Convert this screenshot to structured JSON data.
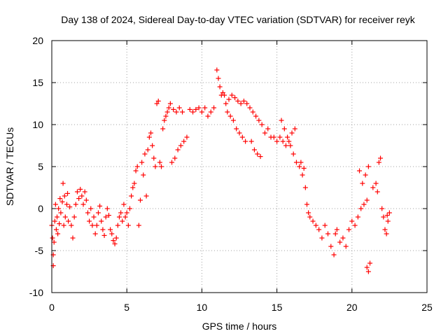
{
  "chart_data": {
    "type": "scatter",
    "title": "Day 138 of 2024, Sidereal Day-to-day VTEC variation (SDTVAR) for receiver reyk",
    "xlabel": "GPS time / hours",
    "ylabel": "SDTVAR / TECUs",
    "xlim": [
      0,
      25
    ],
    "ylim": [
      -10,
      20
    ],
    "xticks": [
      0,
      5,
      10,
      15,
      20,
      25
    ],
    "yticks": [
      -10,
      -5,
      0,
      5,
      10,
      15,
      20
    ],
    "grid": true,
    "marker": "+",
    "color": "#ff0000",
    "series": [
      {
        "name": "SDTVAR",
        "points": [
          [
            0.0,
            -2.0
          ],
          [
            0.05,
            -3.5
          ],
          [
            0.1,
            -5.5
          ],
          [
            0.1,
            -6.8
          ],
          [
            0.15,
            -4.0
          ],
          [
            0.2,
            -1.5
          ],
          [
            0.25,
            0.5
          ],
          [
            0.3,
            -2.5
          ],
          [
            0.35,
            -1.0
          ],
          [
            0.4,
            -3.0
          ],
          [
            0.45,
            0.0
          ],
          [
            0.5,
            -1.8
          ],
          [
            0.55,
            1.2
          ],
          [
            0.6,
            -0.5
          ],
          [
            0.7,
            0.8
          ],
          [
            0.75,
            3.0
          ],
          [
            0.8,
            -2.0
          ],
          [
            0.85,
            1.5
          ],
          [
            0.9,
            -1.0
          ],
          [
            1.0,
            0.5
          ],
          [
            1.05,
            1.8
          ],
          [
            1.1,
            -1.5
          ],
          [
            1.2,
            0.2
          ],
          [
            1.3,
            -2.0
          ],
          [
            1.4,
            -3.5
          ],
          [
            1.5,
            -1.0
          ],
          [
            1.6,
            0.5
          ],
          [
            1.7,
            2.0
          ],
          [
            1.8,
            1.2
          ],
          [
            1.9,
            2.3
          ],
          [
            2.0,
            1.5
          ],
          [
            2.1,
            0.5
          ],
          [
            2.2,
            2.0
          ],
          [
            2.3,
            1.0
          ],
          [
            2.4,
            -0.5
          ],
          [
            2.5,
            -1.5
          ],
          [
            2.6,
            0.0
          ],
          [
            2.7,
            -2.0
          ],
          [
            2.8,
            -1.0
          ],
          [
            2.9,
            -3.0
          ],
          [
            3.0,
            -2.0
          ],
          [
            3.1,
            -0.5
          ],
          [
            3.2,
            0.3
          ],
          [
            3.3,
            -1.5
          ],
          [
            3.4,
            -2.5
          ],
          [
            3.5,
            -3.2
          ],
          [
            3.6,
            -1.0
          ],
          [
            3.7,
            0.0
          ],
          [
            3.8,
            -0.8
          ],
          [
            3.9,
            -2.5
          ],
          [
            4.0,
            -3.0
          ],
          [
            4.1,
            -3.8
          ],
          [
            4.2,
            -4.2
          ],
          [
            4.3,
            -3.5
          ],
          [
            4.4,
            -2.0
          ],
          [
            4.5,
            -1.0
          ],
          [
            4.6,
            -0.5
          ],
          [
            4.7,
            -1.5
          ],
          [
            4.8,
            0.5
          ],
          [
            4.9,
            -1.0
          ],
          [
            5.0,
            -0.5
          ],
          [
            5.1,
            -2.0
          ],
          [
            5.2,
            0.0
          ],
          [
            5.3,
            1.5
          ],
          [
            5.4,
            2.5
          ],
          [
            5.5,
            3.0
          ],
          [
            5.6,
            4.5
          ],
          [
            5.7,
            5.0
          ],
          [
            5.8,
            -2.0
          ],
          [
            5.9,
            1.0
          ],
          [
            6.0,
            5.5
          ],
          [
            6.1,
            4.0
          ],
          [
            6.2,
            6.5
          ],
          [
            6.3,
            1.5
          ],
          [
            6.4,
            7.0
          ],
          [
            6.5,
            8.5
          ],
          [
            6.6,
            9.0
          ],
          [
            6.7,
            7.5
          ],
          [
            6.8,
            6.0
          ],
          [
            6.9,
            5.0
          ],
          [
            7.0,
            12.5
          ],
          [
            7.1,
            12.8
          ],
          [
            7.2,
            5.5
          ],
          [
            7.3,
            5.0
          ],
          [
            7.4,
            9.5
          ],
          [
            7.5,
            10.5
          ],
          [
            7.6,
            11.0
          ],
          [
            7.7,
            11.5
          ],
          [
            7.8,
            12.0
          ],
          [
            7.9,
            12.5
          ],
          [
            8.0,
            5.5
          ],
          [
            8.2,
            6.0
          ],
          [
            8.4,
            7.0
          ],
          [
            8.6,
            7.5
          ],
          [
            8.8,
            8.0
          ],
          [
            9.0,
            8.5
          ],
          [
            8.1,
            11.8
          ],
          [
            8.3,
            11.5
          ],
          [
            8.5,
            12.0
          ],
          [
            8.7,
            11.5
          ],
          [
            9.2,
            11.8
          ],
          [
            9.4,
            11.5
          ],
          [
            9.6,
            11.8
          ],
          [
            9.8,
            12.0
          ],
          [
            10.0,
            11.5
          ],
          [
            10.2,
            12.0
          ],
          [
            10.4,
            11.0
          ],
          [
            10.6,
            11.5
          ],
          [
            10.8,
            12.0
          ],
          [
            11.0,
            16.5
          ],
          [
            11.1,
            15.5
          ],
          [
            11.2,
            14.5
          ],
          [
            11.3,
            13.5
          ],
          [
            11.4,
            13.8
          ],
          [
            11.5,
            13.5
          ],
          [
            11.6,
            12.5
          ],
          [
            11.8,
            13.0
          ],
          [
            12.0,
            13.5
          ],
          [
            12.2,
            13.2
          ],
          [
            12.4,
            12.8
          ],
          [
            11.7,
            11.5
          ],
          [
            11.9,
            11.0
          ],
          [
            12.1,
            10.5
          ],
          [
            12.3,
            9.5
          ],
          [
            12.5,
            9.0
          ],
          [
            12.7,
            8.5
          ],
          [
            12.9,
            8.0
          ],
          [
            12.6,
            12.5
          ],
          [
            12.8,
            12.8
          ],
          [
            13.0,
            12.5
          ],
          [
            13.2,
            12.0
          ],
          [
            13.4,
            11.5
          ],
          [
            13.6,
            11.0
          ],
          [
            13.8,
            10.5
          ],
          [
            13.3,
            8.0
          ],
          [
            13.5,
            7.0
          ],
          [
            13.7,
            6.5
          ],
          [
            13.9,
            6.2
          ],
          [
            14.0,
            10.0
          ],
          [
            14.2,
            9.0
          ],
          [
            14.4,
            9.5
          ],
          [
            14.6,
            8.5
          ],
          [
            14.8,
            8.5
          ],
          [
            15.0,
            8.0
          ],
          [
            15.2,
            8.5
          ],
          [
            15.4,
            8.0
          ],
          [
            15.6,
            7.5
          ],
          [
            15.8,
            8.0
          ],
          [
            16.0,
            9.0
          ],
          [
            16.2,
            9.5
          ],
          [
            15.3,
            10.5
          ],
          [
            15.5,
            9.5
          ],
          [
            15.7,
            8.5
          ],
          [
            15.9,
            7.5
          ],
          [
            16.1,
            6.5
          ],
          [
            16.3,
            5.5
          ],
          [
            16.5,
            5.0
          ],
          [
            16.7,
            4.0
          ],
          [
            16.9,
            2.5
          ],
          [
            17.0,
            0.5
          ],
          [
            16.6,
            5.5
          ],
          [
            16.8,
            4.8
          ],
          [
            17.1,
            -0.5
          ],
          [
            17.2,
            -1.0
          ],
          [
            17.4,
            -1.5
          ],
          [
            17.6,
            -2.0
          ],
          [
            17.8,
            -2.5
          ],
          [
            18.0,
            -3.5
          ],
          [
            18.2,
            -2.0
          ],
          [
            18.4,
            -3.0
          ],
          [
            18.6,
            -4.5
          ],
          [
            18.8,
            -5.5
          ],
          [
            18.9,
            -3.0
          ],
          [
            19.0,
            -2.5
          ],
          [
            19.2,
            -4.0
          ],
          [
            19.4,
            -3.5
          ],
          [
            19.6,
            -4.5
          ],
          [
            19.8,
            -2.5
          ],
          [
            20.0,
            -1.5
          ],
          [
            20.2,
            -2.0
          ],
          [
            20.4,
            -1.0
          ],
          [
            20.6,
            0.0
          ],
          [
            20.8,
            0.5
          ],
          [
            21.0,
            1.0
          ],
          [
            20.5,
            4.5
          ],
          [
            20.7,
            3.0
          ],
          [
            20.9,
            4.0
          ],
          [
            21.1,
            5.0
          ],
          [
            21.0,
            -7.0
          ],
          [
            21.1,
            -7.5
          ],
          [
            21.2,
            -6.5
          ],
          [
            21.4,
            2.5
          ],
          [
            21.6,
            3.0
          ],
          [
            21.8,
            5.5
          ],
          [
            21.9,
            6.0
          ],
          [
            21.7,
            2.0
          ],
          [
            22.0,
            0.0
          ],
          [
            22.1,
            -1.0
          ],
          [
            22.2,
            -2.5
          ],
          [
            22.3,
            -3.0
          ],
          [
            22.4,
            -1.5
          ],
          [
            22.5,
            -0.5
          ],
          [
            22.35,
            -0.8
          ]
        ]
      }
    ]
  }
}
